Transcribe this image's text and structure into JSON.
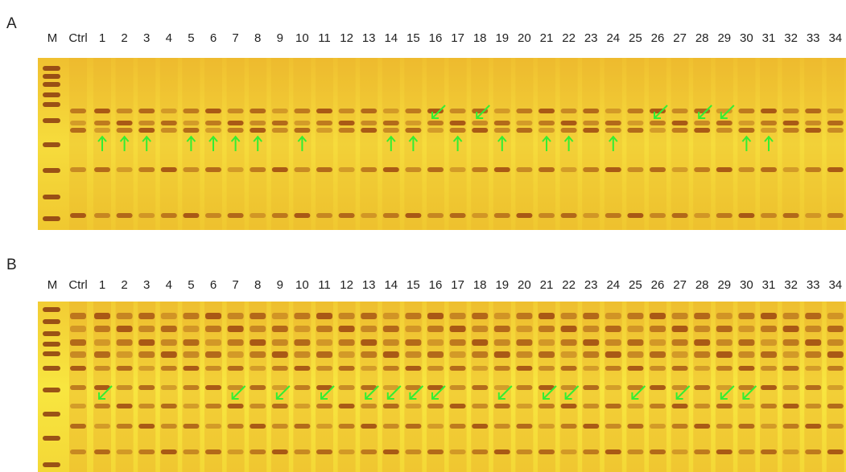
{
  "panels": [
    {
      "label": "A",
      "lanes": [
        "M",
        "Ctrl",
        "1",
        "2",
        "3",
        "4",
        "5",
        "6",
        "7",
        "8",
        "9",
        "10",
        "11",
        "12",
        "13",
        "14",
        "15",
        "16",
        "17",
        "18",
        "19",
        "20",
        "21",
        "22",
        "23",
        "24",
        "25",
        "26",
        "27",
        "28",
        "29",
        "30",
        "31",
        "32",
        "33",
        "34"
      ]
    },
    {
      "label": "B",
      "lanes": [
        "M",
        "Ctrl",
        "1",
        "2",
        "3",
        "4",
        "5",
        "6",
        "7",
        "8",
        "9",
        "10",
        "11",
        "12",
        "13",
        "14",
        "15",
        "16",
        "17",
        "18",
        "19",
        "20",
        "21",
        "22",
        "23",
        "24",
        "25",
        "26",
        "27",
        "28",
        "29",
        "30",
        "31",
        "32",
        "33",
        "34"
      ]
    }
  ]
}
